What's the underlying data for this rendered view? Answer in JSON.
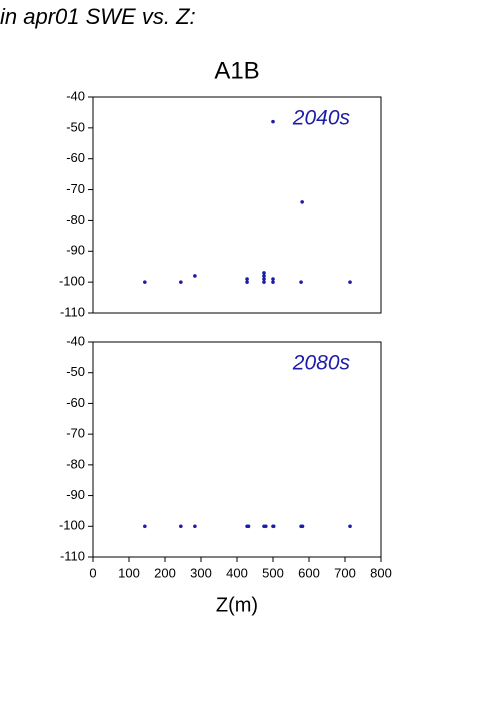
{
  "page_title": "in apr01 SWE vs. Z:",
  "chart_data": [
    {
      "type": "scatter",
      "title": "A1B",
      "annotation": "2040s",
      "color": "#1c1ca8",
      "x": [
        144,
        244,
        283,
        428,
        428,
        475,
        475,
        475,
        475,
        500,
        500,
        500,
        581,
        578,
        714
      ],
      "values": [
        -100,
        -100,
        -98,
        -99,
        -100,
        -97,
        -98,
        -99,
        -100,
        -99,
        -100,
        -48,
        -74,
        -100,
        -100
      ],
      "xlim": [
        0,
        800
      ],
      "ylim": [
        -110,
        -40
      ],
      "yticks": [
        -110,
        -100,
        -90,
        -80,
        -70,
        -60,
        -50,
        -40
      ]
    },
    {
      "type": "scatter",
      "annotation": "2080s",
      "xlabel": "Z(m)",
      "color": "#1c1ca8",
      "x": [
        144,
        244,
        283,
        428,
        432,
        475,
        480,
        500,
        502,
        578,
        582,
        714
      ],
      "values": [
        -100,
        -100,
        -100,
        -100,
        -100,
        -100,
        -100,
        -100,
        -100,
        -100,
        -100,
        -100
      ],
      "xlim": [
        0,
        800
      ],
      "ylim": [
        -110,
        -40
      ],
      "xticks": [
        0,
        100,
        200,
        300,
        400,
        500,
        600,
        700,
        800
      ],
      "yticks": [
        -110,
        -100,
        -90,
        -80,
        -70,
        -60,
        -50,
        -40
      ]
    }
  ]
}
